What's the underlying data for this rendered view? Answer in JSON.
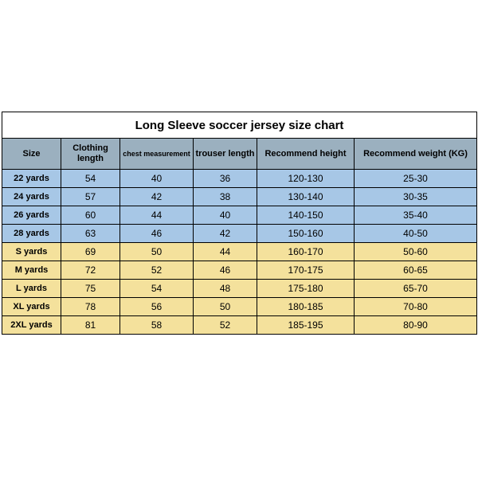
{
  "title": "Long Sleeve soccer jersey size chart",
  "columns": [
    "Size",
    "Clothing length",
    "chest measurement",
    "trouser length",
    "Recommend height",
    "Recommend weight (KG)"
  ],
  "header_bg": "#9bb0bf",
  "group_colors": {
    "blue": "#a7c7e6",
    "yellow": "#f4e19c"
  },
  "rows": [
    {
      "group": "blue",
      "cells": [
        "22 yards",
        "54",
        "40",
        "36",
        "120-130",
        "25-30"
      ]
    },
    {
      "group": "blue",
      "cells": [
        "24 yards",
        "57",
        "42",
        "38",
        "130-140",
        "30-35"
      ]
    },
    {
      "group": "blue",
      "cells": [
        "26 yards",
        "60",
        "44",
        "40",
        "140-150",
        "35-40"
      ]
    },
    {
      "group": "blue",
      "cells": [
        "28 yards",
        "63",
        "46",
        "42",
        "150-160",
        "40-50"
      ]
    },
    {
      "group": "yellow",
      "cells": [
        "S yards",
        "69",
        "50",
        "44",
        "160-170",
        "50-60"
      ]
    },
    {
      "group": "yellow",
      "cells": [
        "M yards",
        "72",
        "52",
        "46",
        "170-175",
        "60-65"
      ]
    },
    {
      "group": "yellow",
      "cells": [
        "L yards",
        "75",
        "54",
        "48",
        "175-180",
        "65-70"
      ]
    },
    {
      "group": "yellow",
      "cells": [
        "XL yards",
        "78",
        "56",
        "50",
        "180-185",
        "70-80"
      ]
    },
    {
      "group": "yellow",
      "cells": [
        "2XL yards",
        "81",
        "58",
        "52",
        "185-195",
        "80-90"
      ]
    }
  ]
}
